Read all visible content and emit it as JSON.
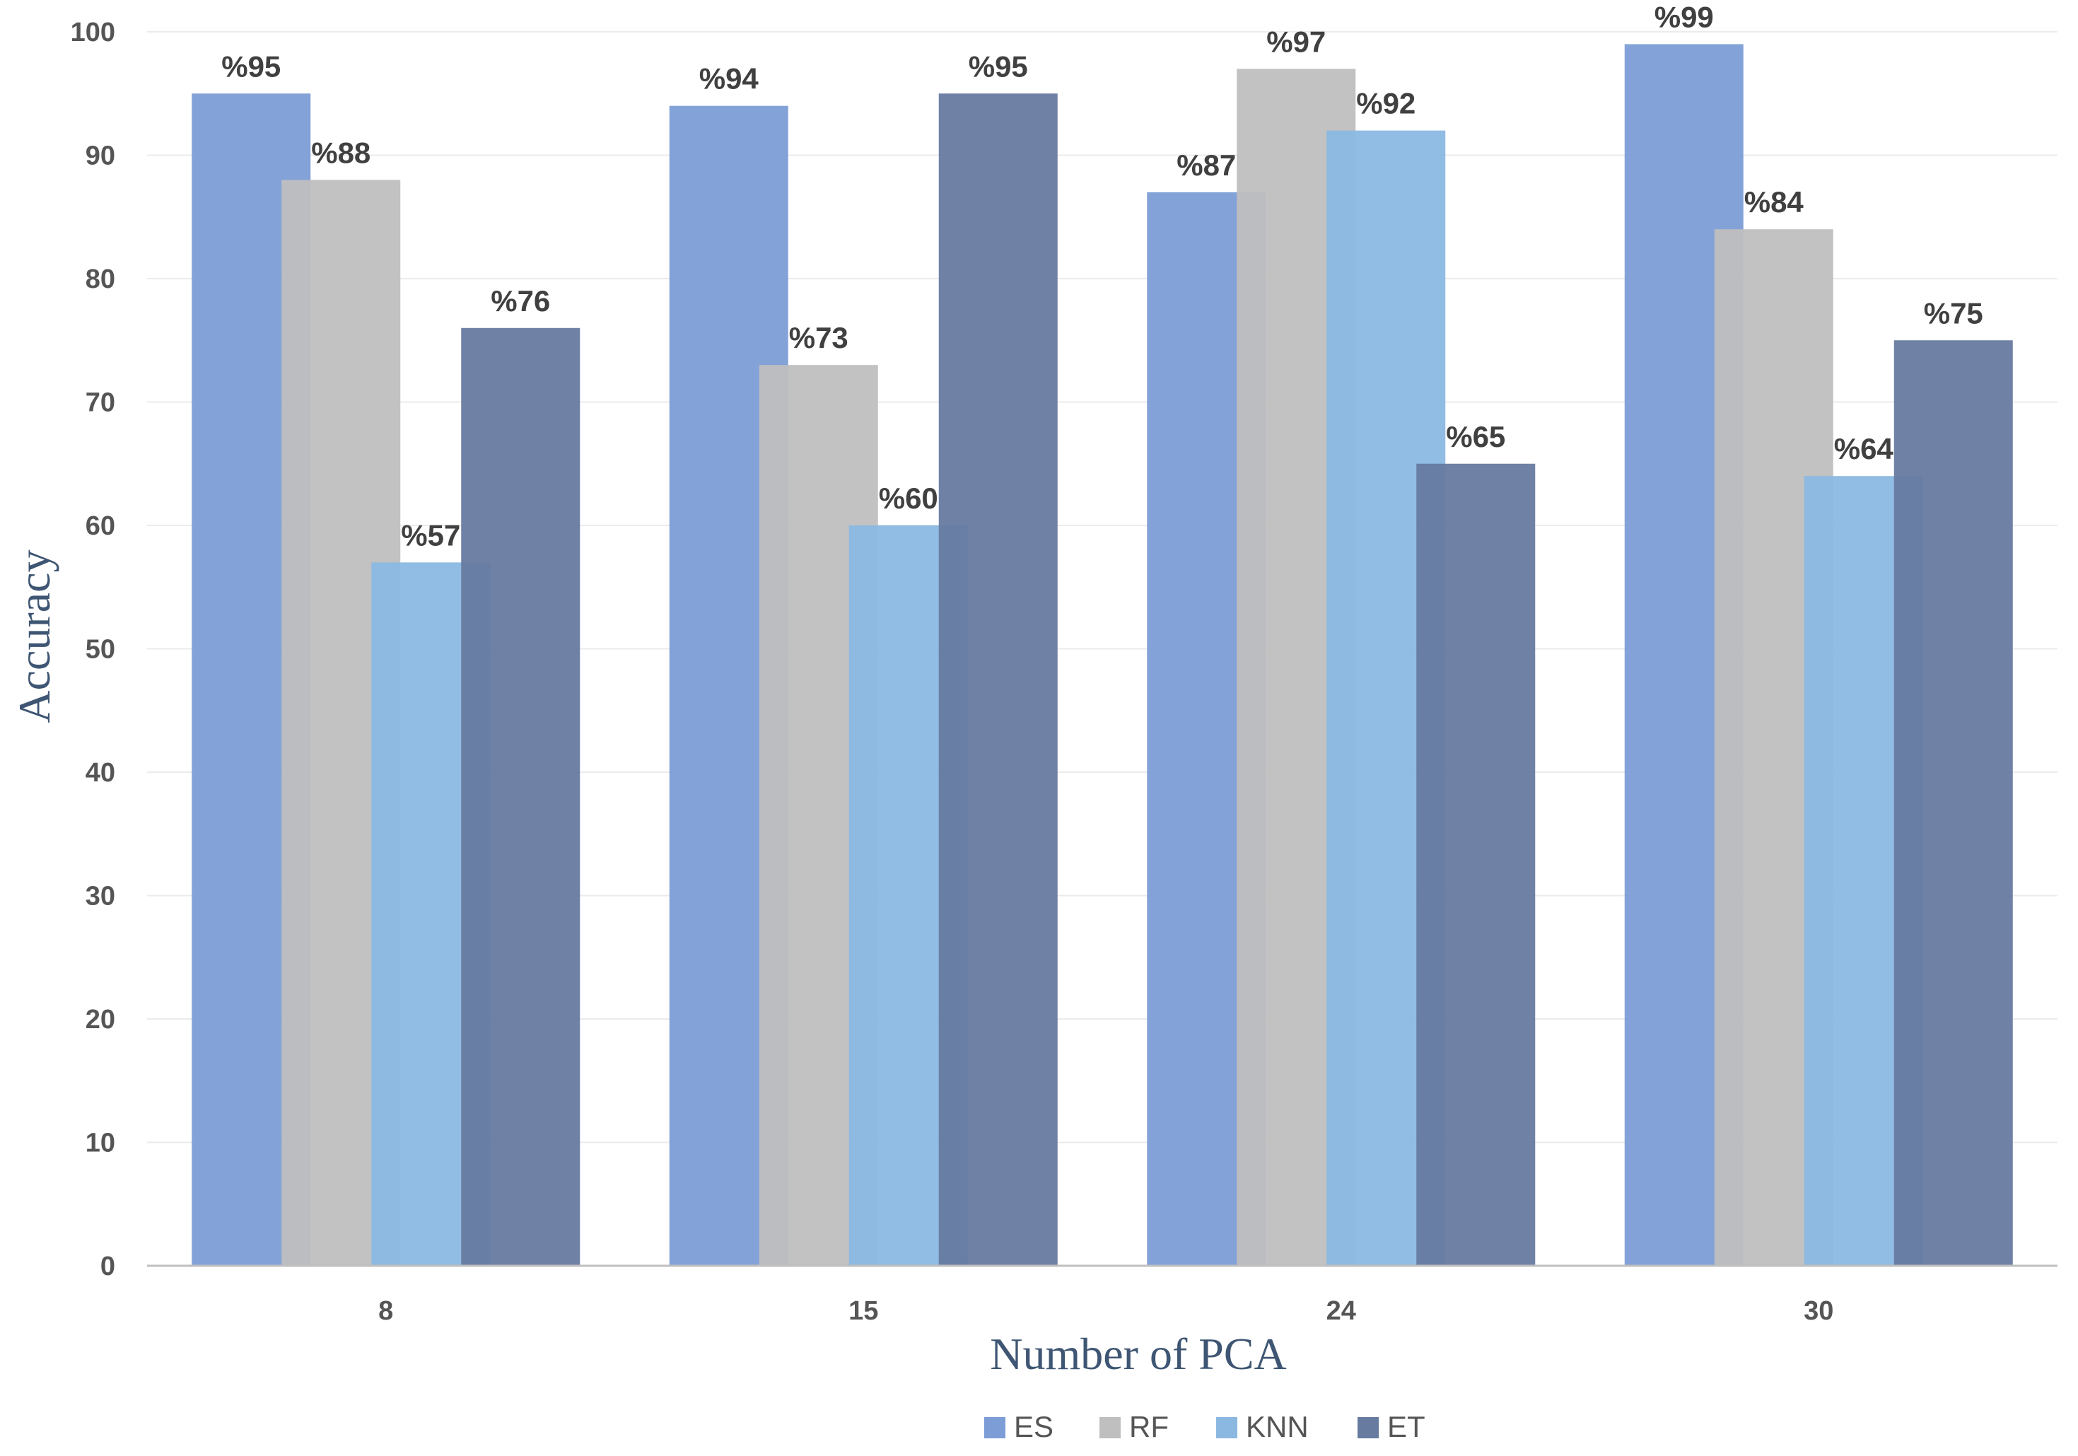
{
  "chart_data": {
    "type": "bar",
    "title": "",
    "xlabel": "Number of PCA",
    "ylabel": "Accuracy",
    "categories": [
      "8",
      "15",
      "24",
      "30"
    ],
    "ylim": [
      0,
      100
    ],
    "yticks": [
      0,
      10,
      20,
      30,
      40,
      50,
      60,
      70,
      80,
      90,
      100
    ],
    "grid": true,
    "legend_position": "bottom",
    "series": [
      {
        "name": "ES",
        "color": "#7c9dd6",
        "values": [
          95,
          94,
          87,
          99
        ],
        "labels": [
          "%95",
          "%94",
          "%87",
          "%99"
        ]
      },
      {
        "name": "RF",
        "color": "#bfbfbf",
        "values": [
          88,
          73,
          97,
          84
        ],
        "labels": [
          "%88",
          "%73",
          "%97",
          "%84"
        ]
      },
      {
        "name": "KNN",
        "color": "#8bb8e1",
        "values": [
          57,
          60,
          92,
          64
        ],
        "labels": [
          "%57",
          "%60",
          "%92",
          "%64"
        ]
      },
      {
        "name": "ET",
        "color": "#677aa0",
        "values": [
          76,
          95,
          65,
          75
        ],
        "labels": [
          "%76",
          "%95",
          "%65",
          "%75"
        ]
      }
    ]
  }
}
